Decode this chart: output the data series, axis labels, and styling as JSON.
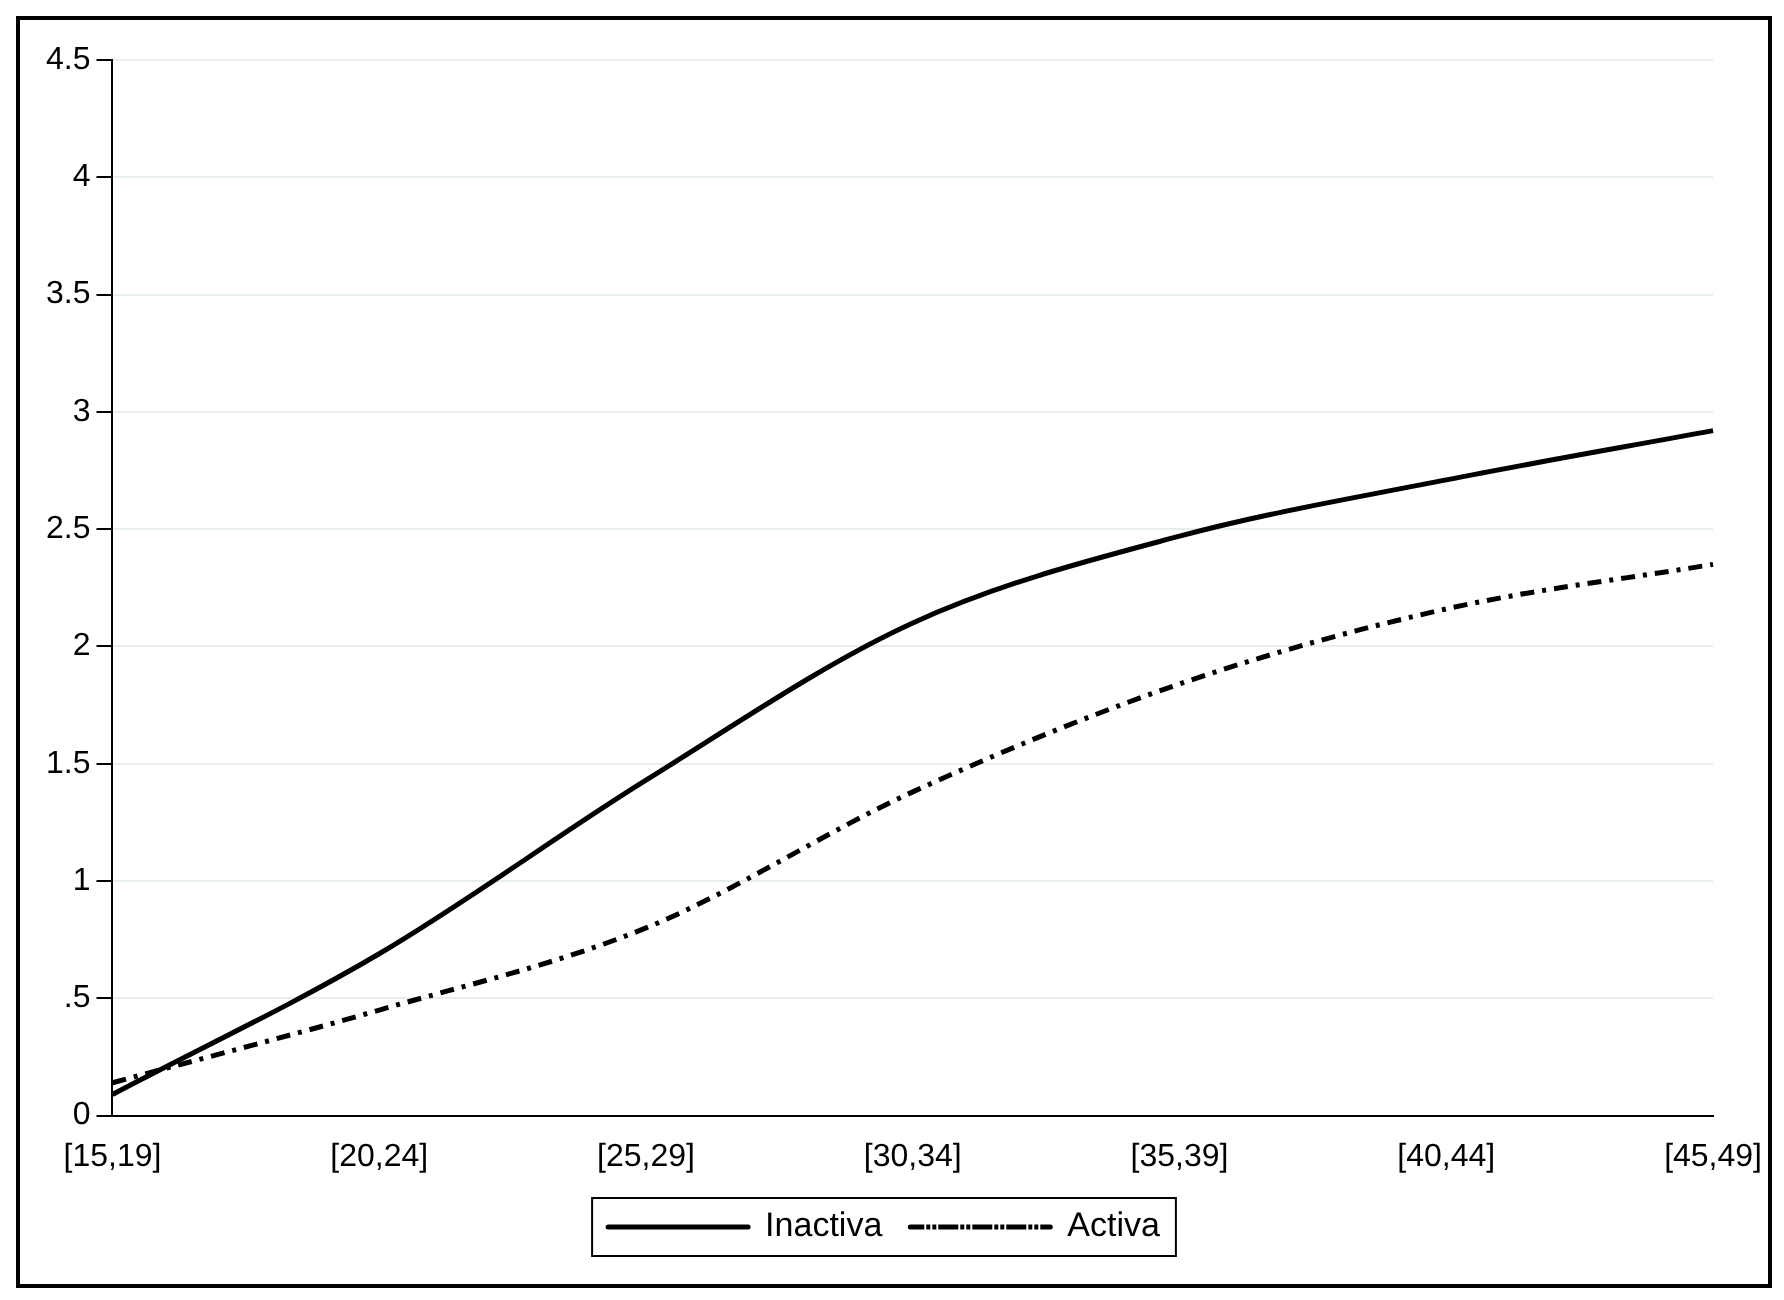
{
  "chart_data": {
    "type": "line",
    "categories": [
      "[15,19]",
      "[20,24]",
      "[25,29]",
      "[30,34]",
      "[35,39]",
      "[40,44]",
      "[45,49]"
    ],
    "series": [
      {
        "name": "Inactiva",
        "color": "#000000",
        "line_style": "solid",
        "values": [
          0.09,
          0.69,
          1.43,
          2.1,
          2.47,
          2.71,
          2.92
        ]
      },
      {
        "name": "Activa",
        "color": "#000000",
        "line_style": "dashed",
        "values": [
          0.14,
          0.45,
          0.8,
          1.38,
          1.84,
          2.16,
          2.35
        ]
      }
    ],
    "ylim": [
      0,
      4.5
    ],
    "yticks": [
      0,
      {
        "value": 0.5,
        "label": ".5"
      },
      1,
      1.5,
      2,
      2.5,
      3,
      3.5,
      4,
      4.5
    ],
    "grid": "y",
    "legend": "bottom",
    "marker": "none"
  }
}
